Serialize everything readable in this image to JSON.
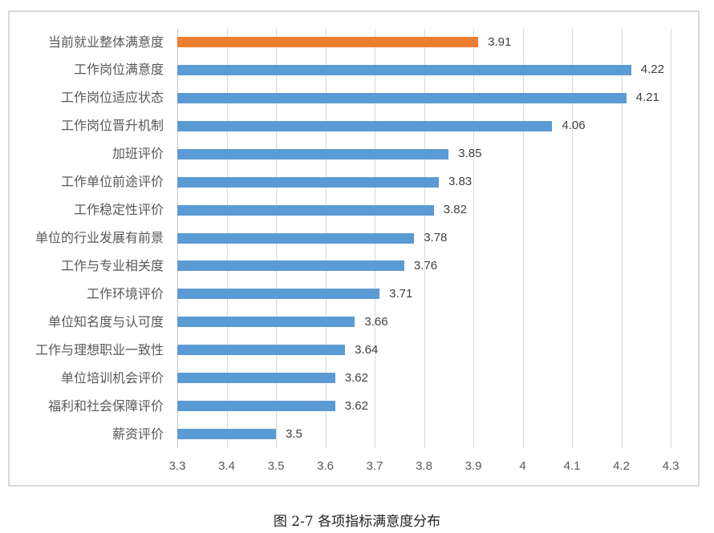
{
  "chart_data": {
    "type": "bar",
    "orientation": "horizontal",
    "title": "",
    "caption": "图 2-7 各项指标满意度分布",
    "xlabel": "",
    "ylabel": "",
    "xlim": [
      3.3,
      4.3
    ],
    "x_ticks": [
      "3.3",
      "3.4",
      "3.5",
      "3.6",
      "3.7",
      "3.8",
      "3.9",
      "4",
      "4.1",
      "4.2",
      "4.3"
    ],
    "grid": true,
    "legend": null,
    "categories": [
      "当前就业整体满意度",
      "工作岗位满意度",
      "工作岗位适应状态",
      "工作岗位晋升机制",
      "加班评价",
      "工作单位前途评价",
      "工作稳定性评价",
      "单位的行业发展有前景",
      "工作与专业相关度",
      "工作环境评价",
      "单位知名度与认可度",
      "工作与理想职业一致性",
      "单位培训机会评价",
      "福利和社会保障评价",
      "薪资评价"
    ],
    "values": [
      3.91,
      4.22,
      4.21,
      4.06,
      3.85,
      3.83,
      3.82,
      3.78,
      3.76,
      3.71,
      3.66,
      3.64,
      3.62,
      3.62,
      3.5
    ],
    "value_labels": [
      "3.91",
      "4.22",
      "4.21",
      "4.06",
      "3.85",
      "3.83",
      "3.82",
      "3.78",
      "3.76",
      "3.71",
      "3.66",
      "3.64",
      "3.62",
      "3.62",
      "3.5"
    ],
    "colors": {
      "highlight": "#ED7D31",
      "default": "#5B9BD5",
      "highlight_index": 0
    }
  },
  "figure": {
    "caption": "图 2-7 各项指标满意度分布"
  }
}
